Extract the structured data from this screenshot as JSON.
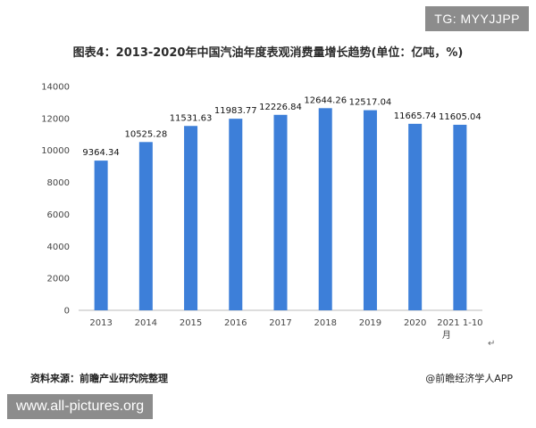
{
  "badge_text": "TG: MYYJJPP",
  "footer": {
    "source": "资料来源：前瞻产业研究院整理",
    "publisher": "@前瞻经济学人APP",
    "pilcrow": "↵"
  },
  "watermark_text": "www.all-pictures.org",
  "colors": {
    "bar": "#3d7fd9",
    "axis": "#bbbbbb"
  },
  "chart_data": {
    "type": "bar",
    "title": "图表4：2013-2020年中国汽油年度表观消费量增长趋势(单位：亿吨，%)",
    "categories": [
      "2013",
      "2014",
      "2015",
      "2016",
      "2017",
      "2018",
      "2019",
      "2020",
      "2021 1-10月"
    ],
    "values": [
      9364.34,
      10525.28,
      11531.63,
      11983.77,
      12226.84,
      12644.26,
      12517.04,
      11665.74,
      11605.04
    ],
    "value_labels": [
      "9364.34",
      "10525.28",
      "11531.63",
      "11983.77",
      "12226.84",
      "12644.26",
      "12517.04",
      "11665.74",
      "11605.04"
    ],
    "ylim": [
      0,
      14000
    ],
    "yticks": [
      0,
      2000,
      4000,
      6000,
      8000,
      10000,
      12000,
      14000
    ],
    "grid": false,
    "legend": "none",
    "xlabel": "",
    "ylabel": ""
  }
}
